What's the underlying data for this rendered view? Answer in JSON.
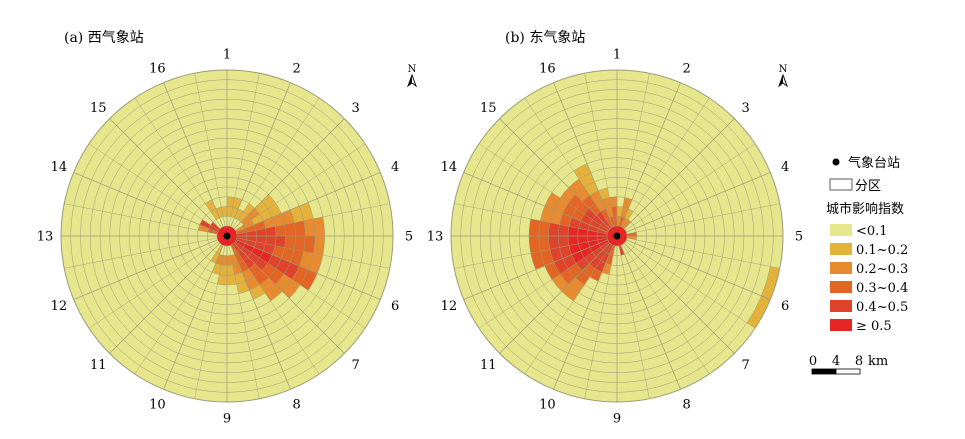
{
  "panels": [
    {
      "title": "(a) 西气象站",
      "sector_labels": [
        "1",
        "2",
        "3",
        "4",
        "5",
        "6",
        "7",
        "8",
        "9",
        "10",
        "11",
        "12",
        "13",
        "14",
        "15",
        "16"
      ],
      "north_label": "N",
      "rings": 16,
      "sectors": 32,
      "cells": [
        {
          "a": 0,
          "b": [
            [
              1,
              3
            ],
            [
              3,
              4
            ]
          ],
          "c": "c1"
        },
        {
          "a": 1,
          "b": [
            [
              1,
              3
            ],
            [
              3,
              6
            ],
            [
              6,
              7
            ]
          ],
          "c": "c1"
        },
        {
          "a": 2,
          "b": [
            [
              1,
              2
            ],
            [
              2,
              4
            ],
            [
              4,
              5
            ]
          ],
          "c": "c1"
        },
        {
          "a": 3,
          "b": [
            [
              1,
              3
            ],
            [
              3,
              5
            ]
          ],
          "c": "c1"
        },
        {
          "a": 4,
          "b": [
            [
              1,
              3
            ],
            [
              3,
              5
            ],
            [
              5,
              6
            ]
          ],
          "c": "c2"
        },
        {
          "a": 5,
          "b": [
            [
              0,
              2
            ],
            [
              2,
              5
            ],
            [
              5,
              7
            ]
          ],
          "c": "c2"
        },
        {
          "a": 6,
          "b": [
            [
              0,
              3
            ],
            [
              3,
              6
            ],
            [
              6,
              8
            ]
          ],
          "c": "c3"
        },
        {
          "a": 7,
          "b": [
            [
              0,
              4
            ],
            [
              4,
              7
            ],
            [
              7,
              9
            ]
          ],
          "c": "c4"
        },
        {
          "a": 8,
          "b": [
            [
              0,
              5
            ],
            [
              5,
              8
            ],
            [
              8,
              9
            ]
          ],
          "c": "c4"
        },
        {
          "a": 9,
          "b": [
            [
              0,
              4
            ],
            [
              4,
              7
            ],
            [
              7,
              9
            ]
          ],
          "c": "c4"
        },
        {
          "a": 10,
          "b": [
            [
              0,
              4
            ],
            [
              4,
              7
            ],
            [
              7,
              9
            ]
          ],
          "c": "c5"
        },
        {
          "a": 11,
          "b": [
            [
              0,
              4
            ],
            [
              4,
              6
            ],
            [
              6,
              8
            ]
          ],
          "c": "c4"
        },
        {
          "a": 12,
          "b": [
            [
              0,
              3
            ],
            [
              3,
              5
            ],
            [
              5,
              7
            ]
          ],
          "c": "c4"
        },
        {
          "a": 13,
          "b": [
            [
              0,
              3
            ],
            [
              3,
              5
            ],
            [
              5,
              6
            ]
          ],
          "c": "c3"
        },
        {
          "a": 14,
          "b": [
            [
              1,
              3
            ],
            [
              3,
              5
            ],
            [
              5,
              6
            ]
          ],
          "c": "c2"
        },
        {
          "a": 15,
          "b": [
            [
              1,
              2
            ],
            [
              2,
              4
            ],
            [
              4,
              6
            ]
          ],
          "c": "c2"
        },
        {
          "a": 16,
          "b": [
            [
              1,
              2
            ],
            [
              2,
              4
            ],
            [
              4,
              6
            ]
          ],
          "c": "c2"
        },
        {
          "a": 17,
          "b": [
            [
              1,
              2
            ],
            [
              2,
              3
            ],
            [
              3,
              4
            ]
          ],
          "c": "c2"
        },
        {
          "a": 18,
          "b": [
            [
              0,
              2
            ],
            [
              2,
              4
            ]
          ],
          "c": "c1"
        },
        {
          "a": 25,
          "b": [
            [
              0,
              1
            ],
            [
              1,
              2
            ]
          ],
          "c": "c3"
        },
        {
          "a": 26,
          "b": [
            [
              0,
              2
            ]
          ],
          "c": "c4"
        },
        {
          "a": 27,
          "b": [
            [
              0,
              1
            ]
          ],
          "c": "c4"
        },
        {
          "a": 29,
          "b": [
            [
              1,
              3
            ],
            [
              3,
              5
            ],
            [
              5,
              6
            ]
          ],
          "c": "c1"
        },
        {
          "a": 30,
          "b": [
            [
              1,
              2
            ],
            [
              2,
              4
            ],
            [
              4,
              6
            ]
          ],
          "c": "c1"
        },
        {
          "a": 31,
          "b": [
            [
              1,
              2
            ],
            [
              2,
              4
            ],
            [
              4,
              6
            ]
          ],
          "c": "c1"
        }
      ]
    },
    {
      "title": "(b) 东气象站",
      "sector_labels": [
        "1",
        "2",
        "3",
        "4",
        "5",
        "6",
        "7",
        "8",
        "9",
        "10",
        "11",
        "12",
        "13",
        "14",
        "15",
        "16"
      ],
      "north_label": "N",
      "rings": 16,
      "sectors": 32,
      "cells": [
        {
          "a": 0,
          "b": [
            [
              0,
              1
            ],
            [
              1,
              2
            ]
          ],
          "c": "c2"
        },
        {
          "a": 1,
          "b": [
            [
              0,
              1
            ],
            [
              1,
              3
            ]
          ],
          "c": "c3"
        },
        {
          "a": 2,
          "b": [
            [
              0,
              1
            ],
            [
              1,
              2
            ]
          ],
          "c": "c2"
        },
        {
          "a": 3,
          "b": [
            [
              0,
              1
            ]
          ],
          "c": "c2"
        },
        {
          "a": 7,
          "b": [
            [
              0,
              1
            ]
          ],
          "c": "c3"
        },
        {
          "a": 8,
          "b": [
            [
              0,
              1
            ]
          ],
          "c": "c2"
        },
        {
          "a": 9,
          "b": [
            [
              15,
              16
            ]
          ],
          "c": "c1"
        },
        {
          "a": 10,
          "b": [
            [
              15,
              16
            ]
          ],
          "c": "c1"
        },
        {
          "a": 14,
          "b": [
            [
              0,
              1
            ]
          ],
          "c": "c4"
        },
        {
          "a": 17,
          "b": [
            [
              0,
              2
            ],
            [
              2,
              3
            ]
          ],
          "c": "c3"
        },
        {
          "a": 18,
          "b": [
            [
              0,
              3
            ],
            [
              3,
              4
            ]
          ],
          "c": "c4"
        },
        {
          "a": 19,
          "b": [
            [
              0,
              3
            ],
            [
              3,
              5
            ],
            [
              5,
              7
            ]
          ],
          "c": "c4"
        },
        {
          "a": 20,
          "b": [
            [
              0,
              4
            ],
            [
              4,
              6
            ],
            [
              6,
              7
            ]
          ],
          "c": "c4"
        },
        {
          "a": 21,
          "b": [
            [
              0,
              4
            ],
            [
              4,
              6
            ],
            [
              6,
              7
            ]
          ],
          "c": "c5"
        },
        {
          "a": 22,
          "b": [
            [
              0,
              4
            ],
            [
              4,
              6
            ],
            [
              6,
              8
            ]
          ],
          "c": "c5"
        },
        {
          "a": 23,
          "b": [
            [
              0,
              4
            ],
            [
              4,
              6
            ],
            [
              6,
              8
            ]
          ],
          "c": "c5"
        },
        {
          "a": 24,
          "b": [
            [
              0,
              4
            ],
            [
              4,
              6
            ],
            [
              6,
              8
            ]
          ],
          "c": "c5"
        },
        {
          "a": 25,
          "b": [
            [
              0,
              4
            ],
            [
              4,
              5
            ],
            [
              5,
              7
            ]
          ],
          "c": "c4"
        },
        {
          "a": 26,
          "b": [
            [
              0,
              3
            ],
            [
              3,
              5
            ],
            [
              5,
              7
            ]
          ],
          "c": "c4"
        },
        {
          "a": 27,
          "b": [
            [
              0,
              3
            ],
            [
              3,
              5
            ],
            [
              5,
              6
            ]
          ],
          "c": "c4"
        },
        {
          "a": 28,
          "b": [
            [
              0,
              2
            ],
            [
              2,
              4
            ],
            [
              4,
              6
            ]
          ],
          "c": "c4"
        },
        {
          "a": 29,
          "b": [
            [
              0,
              2
            ],
            [
              2,
              4
            ],
            [
              4,
              7
            ]
          ],
          "c": "c3"
        },
        {
          "a": 30,
          "b": [
            [
              0,
              1
            ],
            [
              1,
              3
            ],
            [
              3,
              4
            ]
          ],
          "c": "c3"
        },
        {
          "a": 31,
          "b": [
            [
              0,
              2
            ],
            [
              2,
              3
            ]
          ],
          "c": "c3"
        }
      ]
    }
  ],
  "legend": {
    "station_label": "气象台站",
    "zone_label": "分区",
    "title": "城市影响指数",
    "classes": [
      {
        "key": "c0",
        "label": "<0.1",
        "color": "#e6e68c"
      },
      {
        "key": "c1",
        "label": "0.1~0.2",
        "color": "#e4b23a"
      },
      {
        "key": "c2",
        "label": "0.2~0.3",
        "color": "#e88a2e"
      },
      {
        "key": "c3",
        "label": "0.3~0.4",
        "color": "#e36524"
      },
      {
        "key": "c4",
        "label": "0.4~0.5",
        "color": "#e0432b"
      },
      {
        "key": "c5",
        "label": "≥ 0.5",
        "color": "#e82525"
      }
    ]
  },
  "scalebar": {
    "ticks": [
      "0",
      "4",
      "8"
    ],
    "unit": "km"
  }
}
